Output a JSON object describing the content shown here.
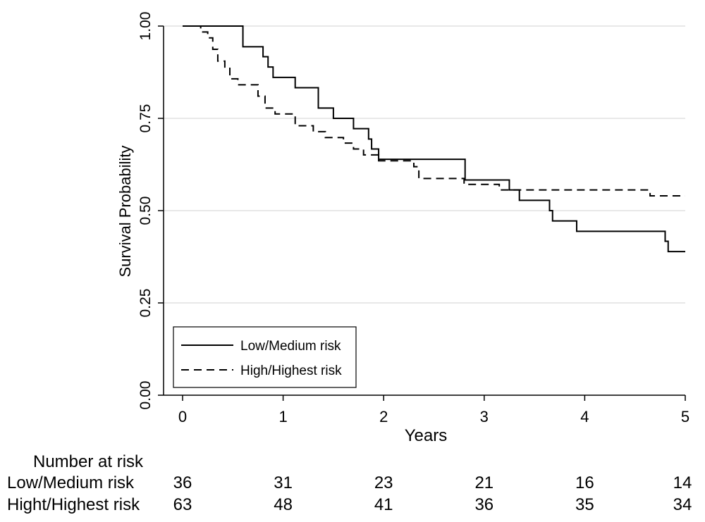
{
  "chart_data": {
    "type": "line",
    "title": "",
    "xlabel": "Years",
    "ylabel": "Survival Probability",
    "xlim": [
      0,
      5
    ],
    "ylim": [
      0,
      1
    ],
    "x_ticks": [
      "0",
      "1",
      "2",
      "3",
      "4",
      "5"
    ],
    "y_ticks": [
      "0.00",
      "0.25",
      "0.50",
      "0.75",
      "1.00"
    ],
    "grid": "horizontal",
    "legend_position": "bottom-left",
    "series": [
      {
        "name": "Low/Medium risk",
        "style": "solid",
        "steps": [
          [
            0,
            1.0
          ],
          [
            0.6,
            0.944
          ],
          [
            0.8,
            0.917
          ],
          [
            0.85,
            0.889
          ],
          [
            0.9,
            0.861
          ],
          [
            1.12,
            0.833
          ],
          [
            1.35,
            0.778
          ],
          [
            1.5,
            0.75
          ],
          [
            1.7,
            0.722
          ],
          [
            1.85,
            0.694
          ],
          [
            1.88,
            0.667
          ],
          [
            1.95,
            0.639
          ],
          [
            2.81,
            0.583
          ],
          [
            3.25,
            0.556
          ],
          [
            3.35,
            0.528
          ],
          [
            3.65,
            0.5
          ],
          [
            3.68,
            0.472
          ],
          [
            3.92,
            0.444
          ],
          [
            4.8,
            0.417
          ],
          [
            4.83,
            0.389
          ],
          [
            5.0,
            0.389
          ]
        ]
      },
      {
        "name": "High/Highest risk",
        "style": "dashed",
        "steps": [
          [
            0,
            1.0
          ],
          [
            0.18,
            0.984
          ],
          [
            0.25,
            0.968
          ],
          [
            0.3,
            0.937
          ],
          [
            0.35,
            0.905
          ],
          [
            0.42,
            0.889
          ],
          [
            0.47,
            0.857
          ],
          [
            0.55,
            0.841
          ],
          [
            0.75,
            0.81
          ],
          [
            0.82,
            0.778
          ],
          [
            0.92,
            0.762
          ],
          [
            1.12,
            0.73
          ],
          [
            1.3,
            0.714
          ],
          [
            1.42,
            0.698
          ],
          [
            1.6,
            0.683
          ],
          [
            1.7,
            0.667
          ],
          [
            1.8,
            0.651
          ],
          [
            1.95,
            0.635
          ],
          [
            2.3,
            0.619
          ],
          [
            2.35,
            0.587
          ],
          [
            2.8,
            0.571
          ],
          [
            3.15,
            0.556
          ],
          [
            4.65,
            0.54
          ],
          [
            5.0,
            0.54
          ]
        ]
      }
    ],
    "risk_table": {
      "header": "Number at risk",
      "times": [
        0,
        1,
        2,
        3,
        4,
        5
      ],
      "rows": [
        {
          "label": "Low/Medium risk",
          "values": [
            36,
            31,
            23,
            21,
            16,
            14
          ]
        },
        {
          "label": "Hight/Highest risk",
          "values": [
            63,
            48,
            41,
            36,
            35,
            34
          ]
        }
      ]
    }
  }
}
